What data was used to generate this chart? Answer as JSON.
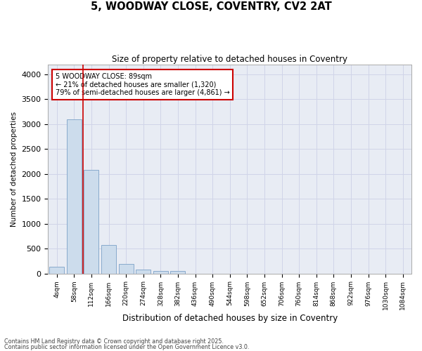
{
  "title_line1": "5, WOODWAY CLOSE, COVENTRY, CV2 2AT",
  "title_line2": "Size of property relative to detached houses in Coventry",
  "xlabel": "Distribution of detached houses by size in Coventry",
  "ylabel": "Number of detached properties",
  "bar_color": "#ccdcec",
  "bar_edge_color": "#88aacc",
  "grid_color": "#d0d4e8",
  "bg_color": "#e8ecf4",
  "annotation_box_color": "#cc0000",
  "red_line_color": "#cc0000",
  "categories": [
    "4sqm",
    "58sqm",
    "112sqm",
    "166sqm",
    "220sqm",
    "274sqm",
    "328sqm",
    "382sqm",
    "436sqm",
    "490sqm",
    "544sqm",
    "598sqm",
    "652sqm",
    "706sqm",
    "760sqm",
    "814sqm",
    "868sqm",
    "922sqm",
    "976sqm",
    "1030sqm",
    "1084sqm"
  ],
  "values": [
    140,
    3100,
    2080,
    575,
    195,
    75,
    55,
    45,
    0,
    0,
    0,
    0,
    0,
    0,
    0,
    0,
    0,
    0,
    0,
    0,
    0
  ],
  "ylim": [
    0,
    4200
  ],
  "yticks": [
    0,
    500,
    1000,
    1500,
    2000,
    2500,
    3000,
    3500,
    4000
  ],
  "annotation_line1": "5 WOODWAY CLOSE: 89sqm",
  "annotation_line2": "← 21% of detached houses are smaller (1,320)",
  "annotation_line3": "79% of semi-detached houses are larger (4,861) →",
  "red_line_x": 1.5,
  "footer_line1": "Contains HM Land Registry data © Crown copyright and database right 2025.",
  "footer_line2": "Contains public sector information licensed under the Open Government Licence v3.0."
}
